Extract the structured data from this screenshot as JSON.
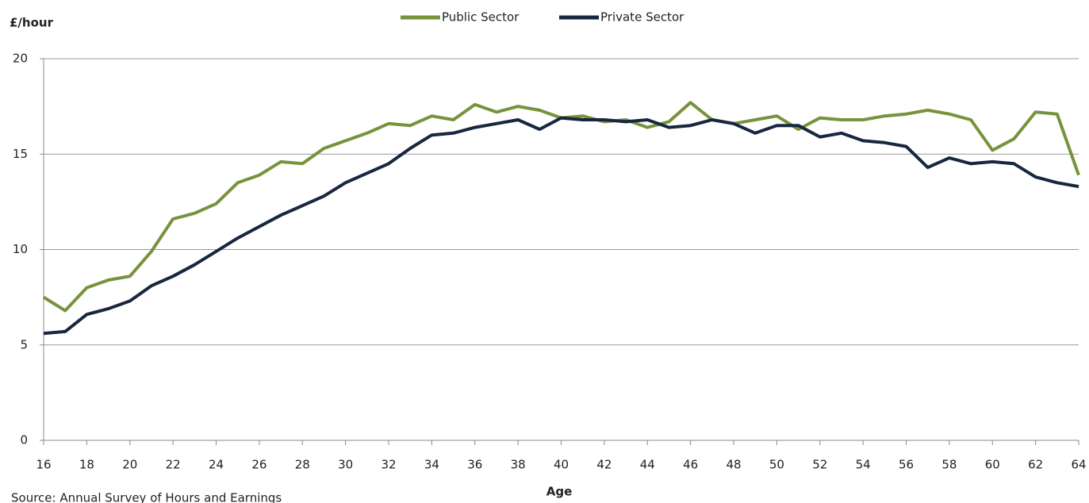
{
  "chart_data": {
    "type": "line",
    "y_label": "£/hour",
    "x_label": "Age",
    "source": "Source: Annual Survey of Hours and Earnings",
    "x": [
      16,
      17,
      18,
      19,
      20,
      21,
      22,
      23,
      24,
      25,
      26,
      27,
      28,
      29,
      30,
      31,
      32,
      33,
      34,
      35,
      36,
      37,
      38,
      39,
      40,
      41,
      42,
      43,
      44,
      45,
      46,
      47,
      48,
      49,
      50,
      51,
      52,
      53,
      54,
      55,
      56,
      57,
      58,
      59,
      60,
      61,
      62,
      63,
      64
    ],
    "series": [
      {
        "name": "Public Sector",
        "color": "#77933c",
        "values": [
          7.5,
          6.8,
          8.0,
          8.4,
          8.6,
          9.9,
          11.6,
          11.9,
          12.4,
          13.5,
          13.9,
          14.6,
          14.5,
          15.3,
          15.7,
          16.1,
          16.6,
          16.5,
          17.0,
          16.8,
          17.6,
          17.2,
          17.5,
          17.3,
          16.9,
          17.0,
          16.7,
          16.8,
          16.4,
          16.7,
          17.7,
          16.8,
          16.6,
          16.8,
          17.0,
          16.3,
          16.9,
          16.8,
          16.8,
          17.0,
          17.1,
          17.3,
          17.1,
          16.8,
          15.2,
          15.8,
          17.2,
          17.1,
          13.9
        ]
      },
      {
        "name": "Private Sector",
        "color": "#17273f",
        "values": [
          5.6,
          5.7,
          6.6,
          6.9,
          7.3,
          8.1,
          8.6,
          9.2,
          9.9,
          10.6,
          11.2,
          11.8,
          12.3,
          12.8,
          13.5,
          14.0,
          14.5,
          15.3,
          16.0,
          16.1,
          16.4,
          16.6,
          16.8,
          16.3,
          16.9,
          16.8,
          16.8,
          16.7,
          16.8,
          16.4,
          16.5,
          16.8,
          16.6,
          16.1,
          16.5,
          16.5,
          15.9,
          16.1,
          15.7,
          15.6,
          15.4,
          14.3,
          14.8,
          14.5,
          14.6,
          14.5,
          13.8,
          13.5,
          13.3
        ]
      }
    ],
    "xlim": [
      16,
      64
    ],
    "xticks": [
      16,
      18,
      20,
      22,
      24,
      26,
      28,
      30,
      32,
      34,
      36,
      38,
      40,
      42,
      44,
      46,
      48,
      50,
      52,
      54,
      56,
      58,
      60,
      62,
      64
    ],
    "ylim": [
      0,
      20
    ],
    "yticks": [
      0,
      5,
      10,
      15,
      20
    ],
    "grid": true,
    "legend": "top"
  }
}
